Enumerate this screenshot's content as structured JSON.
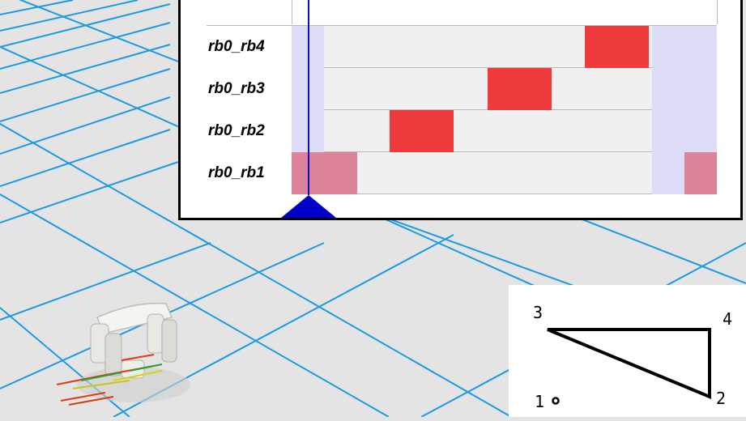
{
  "gait_timeline": {
    "rows": [
      {
        "label": "rb0_rb4",
        "stance": [
          [
            0.69,
            0.84
          ]
        ],
        "overlap": []
      },
      {
        "label": "rb0_rb3",
        "stance": [
          [
            0.46,
            0.61
          ]
        ],
        "overlap": []
      },
      {
        "label": "rb0_rb2",
        "stance": [
          [
            0.23,
            0.38
          ]
        ],
        "overlap": []
      },
      {
        "label": "rb0_rb1",
        "stance": [],
        "overlap": [
          [
            0.0,
            0.155
          ],
          [
            0.924,
            1.0
          ]
        ]
      }
    ],
    "current_window": [
      [
        0.0,
        0.077
      ],
      [
        0.847,
        1.0
      ]
    ],
    "cursor_position": 0.038
  },
  "leg_diagram": {
    "labels": [
      "3",
      "4",
      "1",
      "2"
    ],
    "support_polygon": [
      "3",
      "4",
      "2"
    ]
  },
  "colors": {
    "stance": "#ef3b3b",
    "overlap": "#dc8298",
    "current_window": "#dcdcf6",
    "cursor": "#0000c8",
    "grid_line": "#1e9be0",
    "floor": "#e4e4e4"
  }
}
